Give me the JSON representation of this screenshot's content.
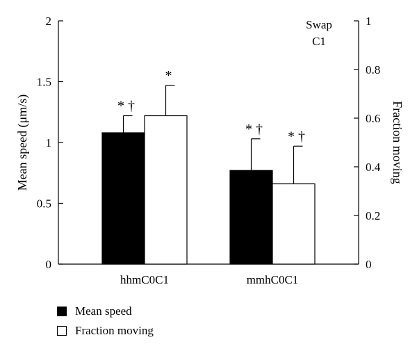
{
  "chart_data": {
    "type": "bar",
    "categories": [
      "hhmC0C1",
      "mmhC0C1"
    ],
    "series": [
      {
        "name": "Mean speed",
        "axis": "left",
        "color": "#000000",
        "values": [
          1.08,
          0.77
        ],
        "error": [
          0.14,
          0.26
        ],
        "markers": [
          "* †",
          "* †"
        ]
      },
      {
        "name": "Fraction moving",
        "axis": "right",
        "color": "#ffffff",
        "values": [
          0.61,
          0.33
        ],
        "error": [
          0.125,
          0.155
        ],
        "markers": [
          "*",
          "* †"
        ]
      }
    ],
    "ylabel": "Mean speed (μm/s)",
    "ylabel_right": "Fraction moving",
    "ylim": [
      0,
      2
    ],
    "ylim_right": [
      0,
      1
    ],
    "yticks": [
      "0",
      "0.5",
      "1",
      "1.5",
      "2"
    ],
    "yticks_right": [
      "0",
      "0.2",
      "0.4",
      "0.6",
      "0.8",
      "1"
    ],
    "annotation": [
      "Swap",
      "C1"
    ],
    "legend_position": "bottom-left",
    "grid": false
  }
}
